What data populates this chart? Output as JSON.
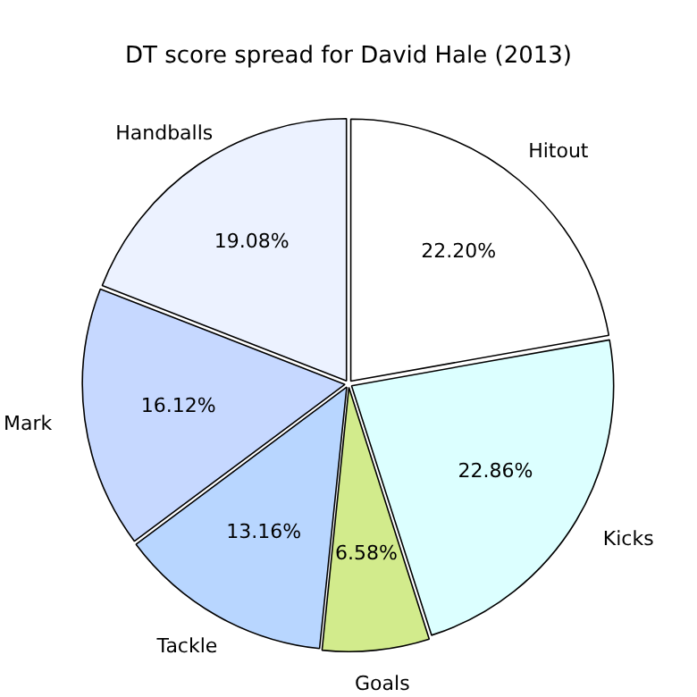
{
  "chart_data": {
    "type": "pie",
    "title": "DT score spread for David Hale (2013)",
    "categories": [
      "Hitout",
      "Kicks",
      "Goals",
      "Tackle",
      "Mark",
      "Handballs"
    ],
    "values": [
      22.2,
      22.86,
      6.58,
      13.16,
      16.12,
      19.08
    ],
    "value_labels": [
      "22.20%",
      "22.86%",
      "6.58%",
      "13.16%",
      "16.12%",
      "19.08%"
    ],
    "colors": [
      "#ffffff",
      "#dcffff",
      "#d2eb8c",
      "#b8d6ff",
      "#c6d8ff",
      "#ecf2ff"
    ],
    "legend": false
  }
}
